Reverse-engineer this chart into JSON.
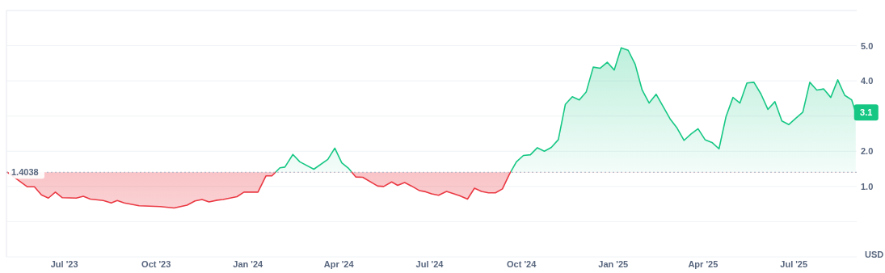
{
  "chart_data": {
    "type": "area",
    "ylabel": "USD",
    "x": [
      "2023-05-05",
      "2023-05-25",
      "2023-06-01",
      "2023-06-08",
      "2023-06-15",
      "2023-06-22",
      "2023-06-29",
      "2023-07-13",
      "2023-07-20",
      "2023-07-27",
      "2023-08-09",
      "2023-08-17",
      "2023-08-23",
      "2023-08-30",
      "2023-09-14",
      "2023-10-05",
      "2023-10-19",
      "2023-11-01",
      "2023-11-09",
      "2023-11-16",
      "2023-11-23",
      "2023-12-01",
      "2023-12-07",
      "2023-12-21",
      "2023-12-28",
      "2024-01-11",
      "2024-01-19",
      "2024-01-25",
      "2024-02-02",
      "2024-02-07",
      "2024-02-15",
      "2024-02-22",
      "2024-03-07",
      "2024-03-21",
      "2024-03-28",
      "2024-04-04",
      "2024-04-11",
      "2024-04-18",
      "2024-04-25",
      "2024-05-10",
      "2024-05-16",
      "2024-05-24",
      "2024-05-30",
      "2024-06-06",
      "2024-06-13",
      "2024-06-21",
      "2024-06-27",
      "2024-07-03",
      "2024-07-10",
      "2024-07-18",
      "2024-07-31",
      "2024-08-08",
      "2024-08-15",
      "2024-08-22",
      "2024-08-29",
      "2024-09-05",
      "2024-09-12",
      "2024-09-19",
      "2024-09-26",
      "2024-10-03",
      "2024-10-10",
      "2024-10-17",
      "2024-10-24",
      "2024-10-31",
      "2024-11-07",
      "2024-11-14",
      "2024-11-21",
      "2024-11-28",
      "2024-12-05",
      "2024-12-12",
      "2024-12-19",
      "2024-12-26",
      "2025-01-02",
      "2025-01-09",
      "2025-01-16",
      "2025-01-23",
      "2025-01-30",
      "2025-02-06",
      "2025-02-13",
      "2025-02-20",
      "2025-02-27",
      "2025-03-06",
      "2025-03-13",
      "2025-03-20",
      "2025-03-27",
      "2025-04-03",
      "2025-04-10",
      "2025-04-17",
      "2025-04-24",
      "2025-05-01",
      "2025-05-08",
      "2025-05-15",
      "2025-05-22",
      "2025-05-29",
      "2025-06-05",
      "2025-06-12",
      "2025-06-19",
      "2025-06-26",
      "2025-07-03",
      "2025-07-10",
      "2025-07-17",
      "2025-07-24",
      "2025-07-31",
      "2025-08-07",
      "2025-08-14",
      "2025-08-21",
      "2025-08-28",
      "2025-09-01"
    ],
    "series": [
      {
        "color": "#16c784",
        "values": [
          1.4,
          0.99,
          0.99,
          0.76,
          0.67,
          0.84,
          0.68,
          0.67,
          0.72,
          0.64,
          0.6,
          0.53,
          0.6,
          0.53,
          0.45,
          0.43,
          0.39,
          0.47,
          0.59,
          0.63,
          0.56,
          0.61,
          0.63,
          0.71,
          0.84,
          0.84,
          1.3,
          1.3,
          1.53,
          1.55,
          1.91,
          1.7,
          1.49,
          1.77,
          2.09,
          1.67,
          1.51,
          1.27,
          1.26,
          1.01,
          1.0,
          1.13,
          1.03,
          1.11,
          1.01,
          0.88,
          0.85,
          0.79,
          0.75,
          0.86,
          0.74,
          0.64,
          0.95,
          0.86,
          0.82,
          0.82,
          0.93,
          1.35,
          1.7,
          1.88,
          1.9,
          2.1,
          2.0,
          2.11,
          2.33,
          3.33,
          3.55,
          3.46,
          3.69,
          4.39,
          4.36,
          4.53,
          4.31,
          4.94,
          4.87,
          4.47,
          3.74,
          3.37,
          3.62,
          3.27,
          2.92,
          2.66,
          2.31,
          2.49,
          2.64,
          2.33,
          2.25,
          2.07,
          2.98,
          3.53,
          3.37,
          3.94,
          3.96,
          3.63,
          3.19,
          3.41,
          2.86,
          2.76,
          2.94,
          3.11,
          3.96,
          3.74,
          3.77,
          3.53,
          4.03,
          3.59,
          3.46,
          3.1
        ],
        "colors": [
          "#ea3943",
          "#ea3943",
          "#ea3943",
          "#ea3943",
          "#ea3943",
          "#ea3943",
          "#ea3943",
          "#ea3943",
          "#ea3943",
          "#ea3943",
          "#ea3943",
          "#ea3943",
          "#ea3943",
          "#ea3943",
          "#ea3943",
          "#ea3943",
          "#ea3943",
          "#ea3943",
          "#ea3943",
          "#ea3943",
          "#ea3943",
          "#ea3943",
          "#ea3943",
          "#ea3943",
          "#ea3943",
          "#ea3943",
          "#ea3943",
          "#ea3943",
          "#16c784",
          "#16c784",
          "#16c784",
          "#16c784",
          "#16c784",
          "#16c784",
          "#16c784",
          "#16c784",
          "#16c784",
          "#ea3943",
          "#ea3943",
          "#ea3943",
          "#ea3943",
          "#ea3943",
          "#ea3943",
          "#ea3943",
          "#ea3943",
          "#ea3943",
          "#ea3943",
          "#ea3943",
          "#ea3943",
          "#ea3943",
          "#ea3943",
          "#ea3943",
          "#ea3943",
          "#ea3943",
          "#ea3943",
          "#ea3943",
          "#ea3943",
          "#ea3943",
          "#16c784",
          "#16c784",
          "#16c784",
          "#16c784",
          "#16c784",
          "#16c784",
          "#16c784",
          "#16c784",
          "#16c784",
          "#16c784",
          "#16c784",
          "#16c784",
          "#16c784",
          "#16c784",
          "#16c784",
          "#16c784",
          "#16c784",
          "#16c784",
          "#16c784",
          "#16c784",
          "#16c784",
          "#16c784",
          "#16c784",
          "#16c784",
          "#16c784",
          "#16c784",
          "#16c784",
          "#16c784",
          "#16c784",
          "#16c784",
          "#16c784",
          "#16c784",
          "#16c784",
          "#16c784",
          "#16c784",
          "#16c784",
          "#16c784",
          "#16c784",
          "#16c784",
          "#16c784",
          "#16c784",
          "#16c784",
          "#16c784",
          "#16c784",
          "#16c784",
          "#16c784",
          "#16c784",
          "#16c784",
          "#16c784",
          "#16c784"
        ]
      }
    ],
    "xlim": [
      "2023-05-04",
      "2025-09-02"
    ],
    "xticks": [
      {
        "value": "2023-07-01",
        "label": "Jul '23"
      },
      {
        "value": "2023-10-01",
        "label": "Oct '23"
      },
      {
        "value": "2024-01-01",
        "label": "Jan '24"
      },
      {
        "value": "2024-04-01",
        "label": "Apr '24"
      },
      {
        "value": "2024-07-01",
        "label": "Jul '24"
      },
      {
        "value": "2024-10-01",
        "label": "Oct '24"
      },
      {
        "value": "2025-01-01",
        "label": "Jan '25"
      },
      {
        "value": "2025-04-01",
        "label": "Apr '25"
      },
      {
        "value": "2025-07-01",
        "label": "Jul '25"
      }
    ],
    "ylim": [
      -1.0,
      6.0
    ],
    "yticks": [
      {
        "value": 0,
        "label": null
      },
      {
        "value": 1,
        "label": "1.0"
      },
      {
        "value": 2,
        "label": "2.0"
      },
      {
        "value": 3,
        "label": null
      },
      {
        "value": 4,
        "label": "4.0"
      },
      {
        "value": 5,
        "label": "5.0"
      }
    ],
    "grid": "y",
    "ref_lines": [
      {
        "axis": "y",
        "value": 1.4038,
        "label": "1.4038",
        "color": "#a6b0c3",
        "line_style": "dotted"
      }
    ],
    "annotations": [
      {
        "text": "3.1",
        "x": "2025-09-01",
        "y": 3.1
      }
    ]
  }
}
